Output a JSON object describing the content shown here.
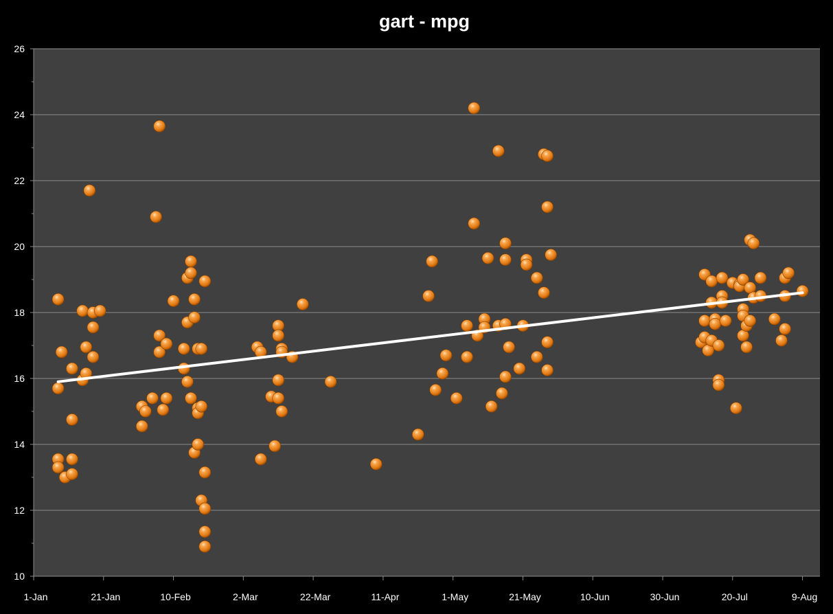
{
  "chart_data": {
    "type": "scatter",
    "title": "gart - mpg",
    "xlabel": "",
    "ylabel": "",
    "x_axis_type": "date",
    "xlim": [
      "2010-01-01",
      "2010-08-14"
    ],
    "ylim": [
      10,
      26
    ],
    "x_tick_values": [
      "2010-01-01",
      "2010-01-21",
      "2010-02-10",
      "2010-03-02",
      "2010-03-22",
      "2010-04-11",
      "2010-05-01",
      "2010-05-21",
      "2010-06-10",
      "2010-06-30",
      "2010-07-20",
      "2010-08-09"
    ],
    "x_tick_labels": [
      "1-Jan",
      "21-Jan",
      "10-Feb",
      "2-Mar",
      "22-Mar",
      "11-Apr",
      "1-May",
      "21-May",
      "10-Jun",
      "30-Jun",
      "20-Jul",
      "9-Aug"
    ],
    "y_ticks": [
      10,
      12,
      14,
      16,
      18,
      20,
      22,
      24,
      26
    ],
    "grid": true,
    "legend": "none",
    "colors": {
      "background": "#000000",
      "plot_area": "#404040",
      "gridline": "#8c8c8c",
      "marker": "#f28c1e",
      "trendline": "#ffffff",
      "text": "#ffffff"
    },
    "trendline": {
      "type": "linear",
      "start": {
        "x": "2010-01-08",
        "y": 15.9
      },
      "end": {
        "x": "2010-08-09",
        "y": 18.6
      }
    },
    "series": [
      {
        "points": [
          [
            "2010-01-08",
            18.4
          ],
          [
            "2010-01-08",
            15.7
          ],
          [
            "2010-01-08",
            13.55
          ],
          [
            "2010-01-08",
            13.3
          ],
          [
            "2010-01-09",
            16.8
          ],
          [
            "2010-01-10",
            13.0
          ],
          [
            "2010-01-12",
            16.3
          ],
          [
            "2010-01-12",
            14.75
          ],
          [
            "2010-01-12",
            13.55
          ],
          [
            "2010-01-12",
            13.1
          ],
          [
            "2010-01-15",
            18.05
          ],
          [
            "2010-01-15",
            15.95
          ],
          [
            "2010-01-16",
            16.95
          ],
          [
            "2010-01-16",
            16.15
          ],
          [
            "2010-01-17",
            21.7
          ],
          [
            "2010-01-18",
            18.0
          ],
          [
            "2010-01-18",
            17.55
          ],
          [
            "2010-01-18",
            16.65
          ],
          [
            "2010-01-20",
            18.05
          ],
          [
            "2010-02-01",
            15.15
          ],
          [
            "2010-02-01",
            14.55
          ],
          [
            "2010-02-02",
            15.0
          ],
          [
            "2010-02-04",
            15.4
          ],
          [
            "2010-02-05",
            20.9
          ],
          [
            "2010-02-06",
            16.8
          ],
          [
            "2010-02-06",
            23.65
          ],
          [
            "2010-02-06",
            17.3
          ],
          [
            "2010-02-07",
            15.05
          ],
          [
            "2010-02-08",
            17.05
          ],
          [
            "2010-02-08",
            15.4
          ],
          [
            "2010-02-10",
            18.35
          ],
          [
            "2010-02-13",
            16.9
          ],
          [
            "2010-02-13",
            16.3
          ],
          [
            "2010-02-14",
            19.05
          ],
          [
            "2010-02-14",
            17.7
          ],
          [
            "2010-02-14",
            15.9
          ],
          [
            "2010-02-15",
            19.55
          ],
          [
            "2010-02-15",
            19.2
          ],
          [
            "2010-02-15",
            15.4
          ],
          [
            "2010-02-16",
            18.4
          ],
          [
            "2010-02-16",
            17.85
          ],
          [
            "2010-02-16",
            13.75
          ],
          [
            "2010-02-17",
            16.9
          ],
          [
            "2010-02-17",
            15.1
          ],
          [
            "2010-02-17",
            14.95
          ],
          [
            "2010-02-17",
            14.0
          ],
          [
            "2010-02-18",
            16.9
          ],
          [
            "2010-02-18",
            15.15
          ],
          [
            "2010-02-18",
            12.3
          ],
          [
            "2010-02-19",
            18.95
          ],
          [
            "2010-02-19",
            13.15
          ],
          [
            "2010-02-19",
            12.05
          ],
          [
            "2010-02-19",
            11.35
          ],
          [
            "2010-02-19",
            10.9
          ],
          [
            "2010-03-06",
            16.95
          ],
          [
            "2010-03-07",
            16.8
          ],
          [
            "2010-03-07",
            13.55
          ],
          [
            "2010-03-10",
            15.45
          ],
          [
            "2010-03-11",
            13.95
          ],
          [
            "2010-03-12",
            17.6
          ],
          [
            "2010-03-12",
            17.3
          ],
          [
            "2010-03-12",
            15.95
          ],
          [
            "2010-03-12",
            15.4
          ],
          [
            "2010-03-13",
            16.9
          ],
          [
            "2010-03-13",
            16.8
          ],
          [
            "2010-03-13",
            15.0
          ],
          [
            "2010-03-16",
            16.65
          ],
          [
            "2010-03-19",
            18.25
          ],
          [
            "2010-03-27",
            15.9
          ],
          [
            "2010-04-09",
            13.4
          ],
          [
            "2010-04-21",
            14.3
          ],
          [
            "2010-04-24",
            18.5
          ],
          [
            "2010-04-25",
            19.55
          ],
          [
            "2010-04-26",
            15.65
          ],
          [
            "2010-04-28",
            16.15
          ],
          [
            "2010-04-29",
            16.7
          ],
          [
            "2010-05-02",
            15.4
          ],
          [
            "2010-05-05",
            17.6
          ],
          [
            "2010-05-05",
            16.65
          ],
          [
            "2010-05-07",
            24.2
          ],
          [
            "2010-05-07",
            20.7
          ],
          [
            "2010-05-08",
            17.3
          ],
          [
            "2010-05-10",
            17.8
          ],
          [
            "2010-05-10",
            17.55
          ],
          [
            "2010-05-11",
            19.65
          ],
          [
            "2010-05-12",
            15.15
          ],
          [
            "2010-05-14",
            22.9
          ],
          [
            "2010-05-14",
            17.6
          ],
          [
            "2010-05-15",
            15.55
          ],
          [
            "2010-05-16",
            20.1
          ],
          [
            "2010-05-16",
            19.6
          ],
          [
            "2010-05-16",
            17.65
          ],
          [
            "2010-05-16",
            16.05
          ],
          [
            "2010-05-17",
            16.95
          ],
          [
            "2010-05-20",
            16.3
          ],
          [
            "2010-05-21",
            17.6
          ],
          [
            "2010-05-22",
            19.6
          ],
          [
            "2010-05-22",
            19.45
          ],
          [
            "2010-05-25",
            19.05
          ],
          [
            "2010-05-25",
            16.65
          ],
          [
            "2010-05-27",
            22.8
          ],
          [
            "2010-05-27",
            18.6
          ],
          [
            "2010-05-28",
            22.75
          ],
          [
            "2010-05-28",
            21.2
          ],
          [
            "2010-05-28",
            17.1
          ],
          [
            "2010-05-28",
            16.25
          ],
          [
            "2010-05-29",
            19.75
          ],
          [
            "2010-07-11",
            17.1
          ],
          [
            "2010-07-12",
            19.15
          ],
          [
            "2010-07-12",
            17.75
          ],
          [
            "2010-07-12",
            17.25
          ],
          [
            "2010-07-13",
            16.85
          ],
          [
            "2010-07-14",
            18.95
          ],
          [
            "2010-07-14",
            18.3
          ],
          [
            "2010-07-14",
            17.15
          ],
          [
            "2010-07-15",
            17.8
          ],
          [
            "2010-07-15",
            17.65
          ],
          [
            "2010-07-16",
            15.95
          ],
          [
            "2010-07-16",
            15.8
          ],
          [
            "2010-07-16",
            17.0
          ],
          [
            "2010-07-17",
            19.05
          ],
          [
            "2010-07-17",
            18.5
          ],
          [
            "2010-07-17",
            18.3
          ],
          [
            "2010-07-18",
            17.75
          ],
          [
            "2010-07-20",
            18.9
          ],
          [
            "2010-07-21",
            15.1
          ],
          [
            "2010-07-22",
            18.85
          ],
          [
            "2010-07-22",
            18.8
          ],
          [
            "2010-07-23",
            19.0
          ],
          [
            "2010-07-23",
            18.1
          ],
          [
            "2010-07-23",
            17.9
          ],
          [
            "2010-07-23",
            17.3
          ],
          [
            "2010-07-24",
            17.6
          ],
          [
            "2010-07-24",
            16.95
          ],
          [
            "2010-07-25",
            20.2
          ],
          [
            "2010-07-25",
            18.75
          ],
          [
            "2010-07-25",
            17.75
          ],
          [
            "2010-07-26",
            20.1
          ],
          [
            "2010-07-26",
            18.45
          ],
          [
            "2010-07-28",
            19.05
          ],
          [
            "2010-07-28",
            18.5
          ],
          [
            "2010-08-01",
            17.8
          ],
          [
            "2010-08-03",
            17.15
          ],
          [
            "2010-08-04",
            19.05
          ],
          [
            "2010-08-04",
            18.5
          ],
          [
            "2010-08-04",
            17.5
          ],
          [
            "2010-08-05",
            19.2
          ],
          [
            "2010-08-09",
            18.65
          ]
        ]
      }
    ]
  }
}
